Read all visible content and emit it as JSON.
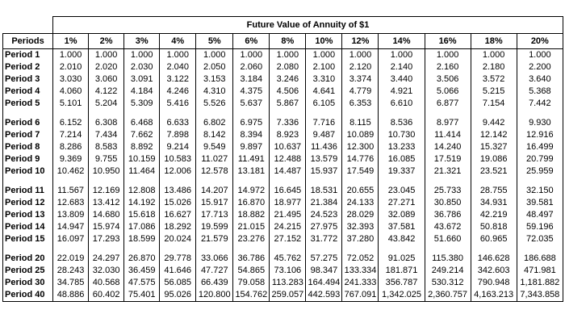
{
  "table": {
    "title": "Future Value of Annuity of $1",
    "columns": [
      "Periods",
      "1%",
      "2%",
      "3%",
      "4%",
      "5%",
      "6%",
      "8%",
      "10%",
      "12%",
      "14%",
      "16%",
      "18%",
      "20%"
    ],
    "groups": [
      {
        "rows": [
          [
            "Period 1",
            "1.000",
            "1.000",
            "1.000",
            "1.000",
            "1.000",
            "1.000",
            "1.000",
            "1.000",
            "1.000",
            "1.000",
            "1.000",
            "1.000",
            "1.000"
          ],
          [
            "Period 2",
            "2.010",
            "2.020",
            "2.030",
            "2.040",
            "2.050",
            "2.060",
            "2.080",
            "2.100",
            "2.120",
            "2.140",
            "2.160",
            "2.180",
            "2.200"
          ],
          [
            "Period 3",
            "3.030",
            "3.060",
            "3.091",
            "3.122",
            "3.153",
            "3.184",
            "3.246",
            "3.310",
            "3.374",
            "3.440",
            "3.506",
            "3.572",
            "3.640"
          ],
          [
            "Period 4",
            "4.060",
            "4.122",
            "4.184",
            "4.246",
            "4.310",
            "4.375",
            "4.506",
            "4.641",
            "4.779",
            "4.921",
            "5.066",
            "5.215",
            "5.368"
          ],
          [
            "Period 5",
            "5.101",
            "5.204",
            "5.309",
            "5.416",
            "5.526",
            "5.637",
            "5.867",
            "6.105",
            "6.353",
            "6.610",
            "6.877",
            "7.154",
            "7.442"
          ]
        ]
      },
      {
        "rows": [
          [
            "Period 6",
            "6.152",
            "6.308",
            "6.468",
            "6.633",
            "6.802",
            "6.975",
            "7.336",
            "7.716",
            "8.115",
            "8.536",
            "8.977",
            "9.442",
            "9.930"
          ],
          [
            "Period 7",
            "7.214",
            "7.434",
            "7.662",
            "7.898",
            "8.142",
            "8.394",
            "8.923",
            "9.487",
            "10.089",
            "10.730",
            "11.414",
            "12.142",
            "12.916"
          ],
          [
            "Period 8",
            "8.286",
            "8.583",
            "8.892",
            "9.214",
            "9.549",
            "9.897",
            "10.637",
            "11.436",
            "12.300",
            "13.233",
            "14.240",
            "15.327",
            "16.499"
          ],
          [
            "Period 9",
            "9.369",
            "9.755",
            "10.159",
            "10.583",
            "11.027",
            "11.491",
            "12.488",
            "13.579",
            "14.776",
            "16.085",
            "17.519",
            "19.086",
            "20.799"
          ],
          [
            "Period 10",
            "10.462",
            "10.950",
            "11.464",
            "12.006",
            "12.578",
            "13.181",
            "14.487",
            "15.937",
            "17.549",
            "19.337",
            "21.321",
            "23.521",
            "25.959"
          ]
        ]
      },
      {
        "rows": [
          [
            "Period 11",
            "11.567",
            "12.169",
            "12.808",
            "13.486",
            "14.207",
            "14.972",
            "16.645",
            "18.531",
            "20.655",
            "23.045",
            "25.733",
            "28.755",
            "32.150"
          ],
          [
            "Period 12",
            "12.683",
            "13.412",
            "14.192",
            "15.026",
            "15.917",
            "16.870",
            "18.977",
            "21.384",
            "24.133",
            "27.271",
            "30.850",
            "34.931",
            "39.581"
          ],
          [
            "Period 13",
            "13.809",
            "14.680",
            "15.618",
            "16.627",
            "17.713",
            "18.882",
            "21.495",
            "24.523",
            "28.029",
            "32.089",
            "36.786",
            "42.219",
            "48.497"
          ],
          [
            "Period 14",
            "14.947",
            "15.974",
            "17.086",
            "18.292",
            "19.599",
            "21.015",
            "24.215",
            "27.975",
            "32.393",
            "37.581",
            "43.672",
            "50.818",
            "59.196"
          ],
          [
            "Period 15",
            "16.097",
            "17.293",
            "18.599",
            "20.024",
            "21.579",
            "23.276",
            "27.152",
            "31.772",
            "37.280",
            "43.842",
            "51.660",
            "60.965",
            "72.035"
          ]
        ]
      },
      {
        "rows": [
          [
            "Period 20",
            "22.019",
            "24.297",
            "26.870",
            "29.778",
            "33.066",
            "36.786",
            "45.762",
            "57.275",
            "72.052",
            "91.025",
            "115.380",
            "146.628",
            "186.688"
          ],
          [
            "Period 25",
            "28.243",
            "32.030",
            "36.459",
            "41.646",
            "47.727",
            "54.865",
            "73.106",
            "98.347",
            "133.334",
            "181.871",
            "249.214",
            "342.603",
            "471.981"
          ],
          [
            "Period 30",
            "34.785",
            "40.568",
            "47.575",
            "56.085",
            "66.439",
            "79.058",
            "113.283",
            "164.494",
            "241.333",
            "356.787",
            "530.312",
            "790.948",
            "1,181.882"
          ],
          [
            "Period 40",
            "48.886",
            "60.402",
            "75.401",
            "95.026",
            "120.800",
            "154.762",
            "259.057",
            "442.593",
            "767.091",
            "1,342.025",
            "2,360.757",
            "4,163.213",
            "7,343.858"
          ]
        ]
      }
    ]
  }
}
